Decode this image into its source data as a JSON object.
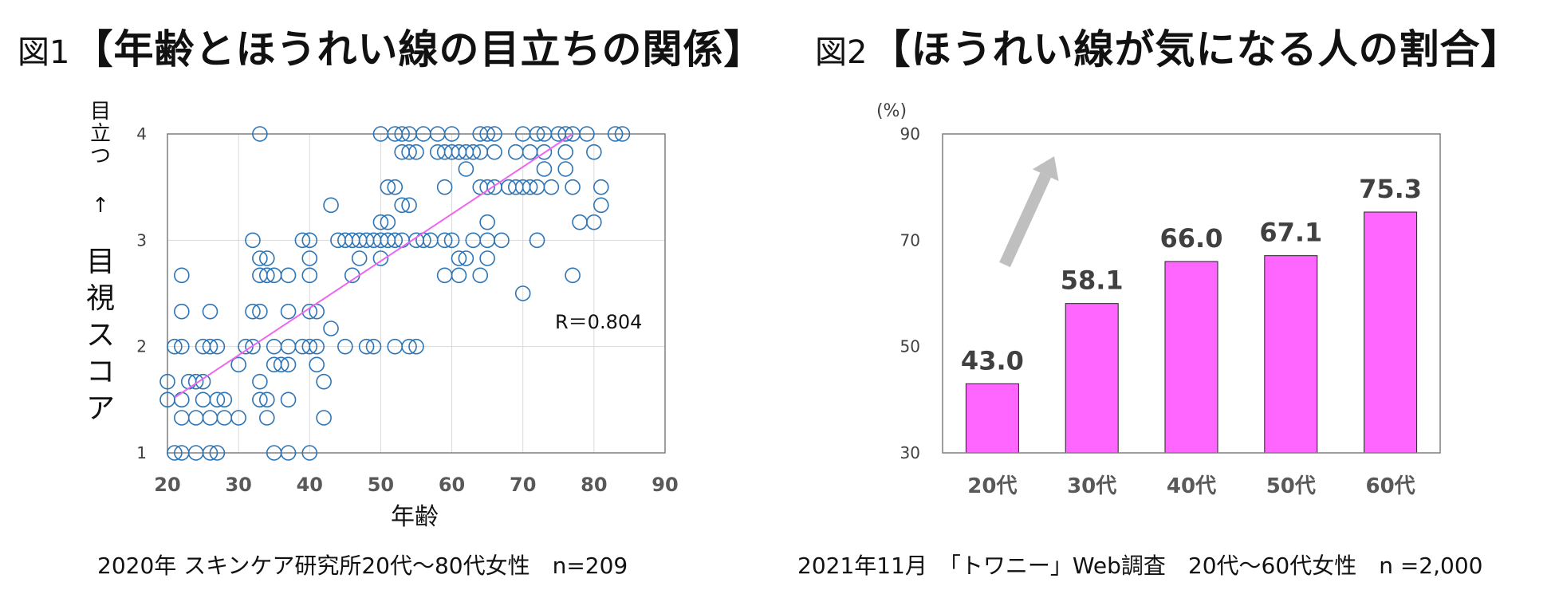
{
  "figure1": {
    "fig_label": "図1",
    "title": "【年齢とほうれい線の目立ちの関係】",
    "caption": "2020年 スキンケア研究所20代～80代女性　n=209",
    "chart_data": {
      "type": "scatter",
      "xlabel": "年齢",
      "ylabel_lines": [
        "目",
        "立",
        "つ",
        "↑",
        "目",
        "視",
        "ス",
        "コ",
        "ア"
      ],
      "xlim": [
        20,
        90
      ],
      "ylim": [
        1,
        4
      ],
      "xticks": [
        20,
        30,
        40,
        50,
        60,
        70,
        80,
        90
      ],
      "yticks": [
        1,
        2,
        3,
        4
      ],
      "grid": true,
      "annotation": "R＝0.804",
      "trendline": {
        "x": [
          21,
          77
        ],
        "y": [
          1.52,
          4.0
        ]
      },
      "marker_color": "#2e75b6",
      "trend_color": "#ee66ee",
      "points": [
        [
          21,
          1.0
        ],
        [
          22,
          1.0
        ],
        [
          24,
          1.0
        ],
        [
          26,
          1.0
        ],
        [
          27,
          1.0
        ],
        [
          35,
          1.0
        ],
        [
          37,
          1.0
        ],
        [
          40,
          1.0
        ],
        [
          22,
          1.33
        ],
        [
          24,
          1.33
        ],
        [
          26,
          1.33
        ],
        [
          28,
          1.33
        ],
        [
          30,
          1.33
        ],
        [
          34,
          1.33
        ],
        [
          42,
          1.33
        ],
        [
          20,
          1.5
        ],
        [
          22,
          1.5
        ],
        [
          25,
          1.5
        ],
        [
          27,
          1.5
        ],
        [
          28,
          1.5
        ],
        [
          33,
          1.5
        ],
        [
          34,
          1.5
        ],
        [
          37,
          1.5
        ],
        [
          20,
          1.67
        ],
        [
          23,
          1.67
        ],
        [
          24,
          1.67
        ],
        [
          25,
          1.67
        ],
        [
          33,
          1.67
        ],
        [
          42,
          1.67
        ],
        [
          30,
          1.83
        ],
        [
          35,
          1.83
        ],
        [
          36,
          1.83
        ],
        [
          37,
          1.83
        ],
        [
          41,
          1.83
        ],
        [
          21,
          2.0
        ],
        [
          22,
          2.0
        ],
        [
          25,
          2.0
        ],
        [
          26,
          2.0
        ],
        [
          27,
          2.0
        ],
        [
          31,
          2.0
        ],
        [
          32,
          2.0
        ],
        [
          35,
          2.0
        ],
        [
          37,
          2.0
        ],
        [
          39,
          2.0
        ],
        [
          40,
          2.0
        ],
        [
          41,
          2.0
        ],
        [
          45,
          2.0
        ],
        [
          48,
          2.0
        ],
        [
          49,
          2.0
        ],
        [
          52,
          2.0
        ],
        [
          54,
          2.0
        ],
        [
          55,
          2.0
        ],
        [
          43,
          2.17
        ],
        [
          22,
          2.33
        ],
        [
          26,
          2.33
        ],
        [
          32,
          2.33
        ],
        [
          33,
          2.33
        ],
        [
          37,
          2.33
        ],
        [
          40,
          2.33
        ],
        [
          41,
          2.33
        ],
        [
          70,
          2.5
        ],
        [
          22,
          2.67
        ],
        [
          33,
          2.67
        ],
        [
          34,
          2.67
        ],
        [
          35,
          2.67
        ],
        [
          37,
          2.67
        ],
        [
          40,
          2.67
        ],
        [
          46,
          2.67
        ],
        [
          59,
          2.67
        ],
        [
          61,
          2.67
        ],
        [
          64,
          2.67
        ],
        [
          77,
          2.67
        ],
        [
          33,
          2.83
        ],
        [
          34,
          2.83
        ],
        [
          40,
          2.83
        ],
        [
          47,
          2.83
        ],
        [
          50,
          2.83
        ],
        [
          61,
          2.83
        ],
        [
          62,
          2.83
        ],
        [
          65,
          2.83
        ],
        [
          32,
          3.0
        ],
        [
          39,
          3.0
        ],
        [
          40,
          3.0
        ],
        [
          44,
          3.0
        ],
        [
          45,
          3.0
        ],
        [
          46,
          3.0
        ],
        [
          47,
          3.0
        ],
        [
          48,
          3.0
        ],
        [
          49,
          3.0
        ],
        [
          50,
          3.0
        ],
        [
          51,
          3.0
        ],
        [
          52,
          3.0
        ],
        [
          53,
          3.0
        ],
        [
          55,
          3.0
        ],
        [
          56,
          3.0
        ],
        [
          57,
          3.0
        ],
        [
          59,
          3.0
        ],
        [
          60,
          3.0
        ],
        [
          63,
          3.0
        ],
        [
          65,
          3.0
        ],
        [
          67,
          3.0
        ],
        [
          72,
          3.0
        ],
        [
          50,
          3.17
        ],
        [
          51,
          3.17
        ],
        [
          65,
          3.17
        ],
        [
          78,
          3.17
        ],
        [
          80,
          3.17
        ],
        [
          43,
          3.33
        ],
        [
          53,
          3.33
        ],
        [
          54,
          3.33
        ],
        [
          81,
          3.33
        ],
        [
          51,
          3.5
        ],
        [
          52,
          3.5
        ],
        [
          59,
          3.5
        ],
        [
          64,
          3.5
        ],
        [
          65,
          3.5
        ],
        [
          66,
          3.5
        ],
        [
          68,
          3.5
        ],
        [
          69,
          3.5
        ],
        [
          70,
          3.5
        ],
        [
          71,
          3.5
        ],
        [
          72,
          3.5
        ],
        [
          74,
          3.5
        ],
        [
          77,
          3.5
        ],
        [
          81,
          3.5
        ],
        [
          62,
          3.67
        ],
        [
          73,
          3.67
        ],
        [
          76,
          3.67
        ],
        [
          53,
          3.83
        ],
        [
          54,
          3.83
        ],
        [
          55,
          3.83
        ],
        [
          58,
          3.83
        ],
        [
          59,
          3.83
        ],
        [
          60,
          3.83
        ],
        [
          61,
          3.83
        ],
        [
          62,
          3.83
        ],
        [
          63,
          3.83
        ],
        [
          64,
          3.83
        ],
        [
          66,
          3.83
        ],
        [
          69,
          3.83
        ],
        [
          71,
          3.83
        ],
        [
          73,
          3.83
        ],
        [
          76,
          3.83
        ],
        [
          80,
          3.83
        ],
        [
          50,
          4.0
        ],
        [
          52,
          4.0
        ],
        [
          53,
          4.0
        ],
        [
          54,
          4.0
        ],
        [
          56,
          4.0
        ],
        [
          58,
          4.0
        ],
        [
          60,
          4.0
        ],
        [
          64,
          4.0
        ],
        [
          65,
          4.0
        ],
        [
          66,
          4.0
        ],
        [
          70,
          4.0
        ],
        [
          72,
          4.0
        ],
        [
          73,
          4.0
        ],
        [
          75,
          4.0
        ],
        [
          76,
          4.0
        ],
        [
          77,
          4.0
        ],
        [
          79,
          4.0
        ],
        [
          83,
          4.0
        ],
        [
          84,
          4.0
        ],
        [
          33,
          4.0
        ]
      ]
    }
  },
  "figure2": {
    "fig_label": "図2",
    "title": "【ほうれい線が気になる人の割合】",
    "caption": "2021年11月　「トワニー」Web調査　20代～60代女性　n =2,000",
    "chart_data": {
      "type": "bar",
      "unit_label": "(%)",
      "categories": [
        "20代",
        "30代",
        "40代",
        "50代",
        "60代"
      ],
      "values": [
        43.0,
        58.1,
        66.0,
        67.1,
        75.3
      ],
      "value_labels": [
        "43.0",
        "58.1",
        "66.0",
        "67.1",
        "75.3"
      ],
      "ylim": [
        30,
        90
      ],
      "yticks": [
        30,
        50,
        70,
        90
      ],
      "grid": false,
      "bar_color": "#ff66ff",
      "arrow_color": "#bfbfbf"
    }
  }
}
